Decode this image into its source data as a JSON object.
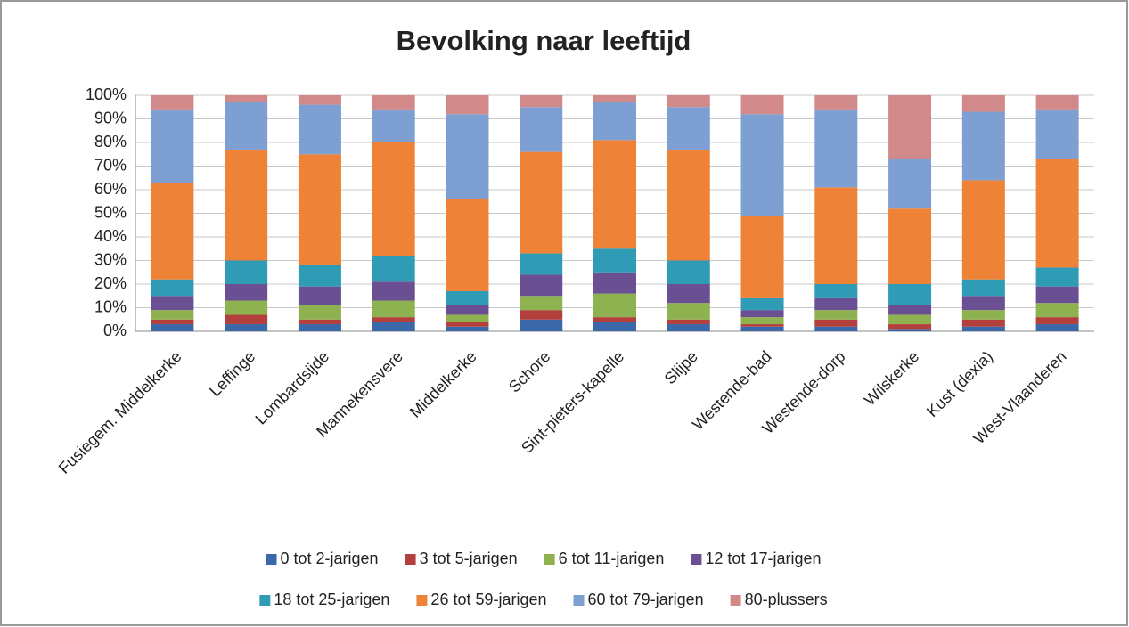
{
  "chart_data": {
    "type": "stacked_bar",
    "title": "Bevolking naar leeftijd",
    "categories": [
      "Fusiegem. Middelkerke",
      "Leffinge",
      "Lombardsijde",
      "Mannekensvere",
      "Middelkerke",
      "Schore",
      "Sint-pieters-kapelle",
      "Slijpe",
      "Westende-bad",
      "Westende-dorp",
      "Wilskerke",
      "Kust (dexia)",
      "West-Vlaanderen"
    ],
    "series": [
      {
        "name": "0 tot 2-jarigen",
        "color": "#3a68a8",
        "values": [
          3,
          3,
          3,
          4,
          2,
          5,
          4,
          3,
          2,
          2,
          1,
          2,
          3
        ]
      },
      {
        "name": "3 tot 5-jarigen",
        "color": "#b3403d",
        "values": [
          2,
          4,
          2,
          2,
          2,
          4,
          2,
          2,
          1,
          3,
          2,
          3,
          3
        ]
      },
      {
        "name": "6 tot 11-jarigen",
        "color": "#8db24f",
        "values": [
          4,
          6,
          6,
          7,
          3,
          6,
          10,
          7,
          3,
          4,
          4,
          4,
          6
        ]
      },
      {
        "name": "12 tot 17-jarigen",
        "color": "#6a4f92",
        "values": [
          6,
          7,
          8,
          8,
          4,
          9,
          9,
          8,
          3,
          5,
          4,
          6,
          7
        ]
      },
      {
        "name": "18 tot 25-jarigen",
        "color": "#2f9bb5",
        "values": [
          7,
          10,
          9,
          11,
          6,
          9,
          10,
          10,
          5,
          6,
          9,
          7,
          8
        ]
      },
      {
        "name": "26 tot 59-jarigen",
        "color": "#ee8236",
        "values": [
          41,
          47,
          47,
          48,
          39,
          43,
          46,
          47,
          35,
          41,
          32,
          42,
          46
        ]
      },
      {
        "name": "60 tot 79-jarigen",
        "color": "#7d9fd2",
        "values": [
          31,
          20,
          21,
          14,
          36,
          19,
          16,
          18,
          43,
          33,
          21,
          29,
          21
        ]
      },
      {
        "name": "80-plussers",
        "color": "#d2898a",
        "values": [
          6,
          3,
          4,
          6,
          8,
          5,
          3,
          5,
          8,
          6,
          27,
          7,
          6
        ]
      }
    ],
    "ylim": [
      0,
      100
    ],
    "yticks": [
      {
        "value": 0,
        "label": "0%"
      },
      {
        "value": 10,
        "label": "10%"
      },
      {
        "value": 20,
        "label": "20%"
      },
      {
        "value": 30,
        "label": "30%"
      },
      {
        "value": 40,
        "label": "40%"
      },
      {
        "value": 50,
        "label": "50%"
      },
      {
        "value": 60,
        "label": "60%"
      },
      {
        "value": 70,
        "label": "70%"
      },
      {
        "value": 80,
        "label": "80%"
      },
      {
        "value": 90,
        "label": "90%"
      },
      {
        "value": 100,
        "label": "100%"
      }
    ],
    "grid": true,
    "legend": "bottom"
  }
}
